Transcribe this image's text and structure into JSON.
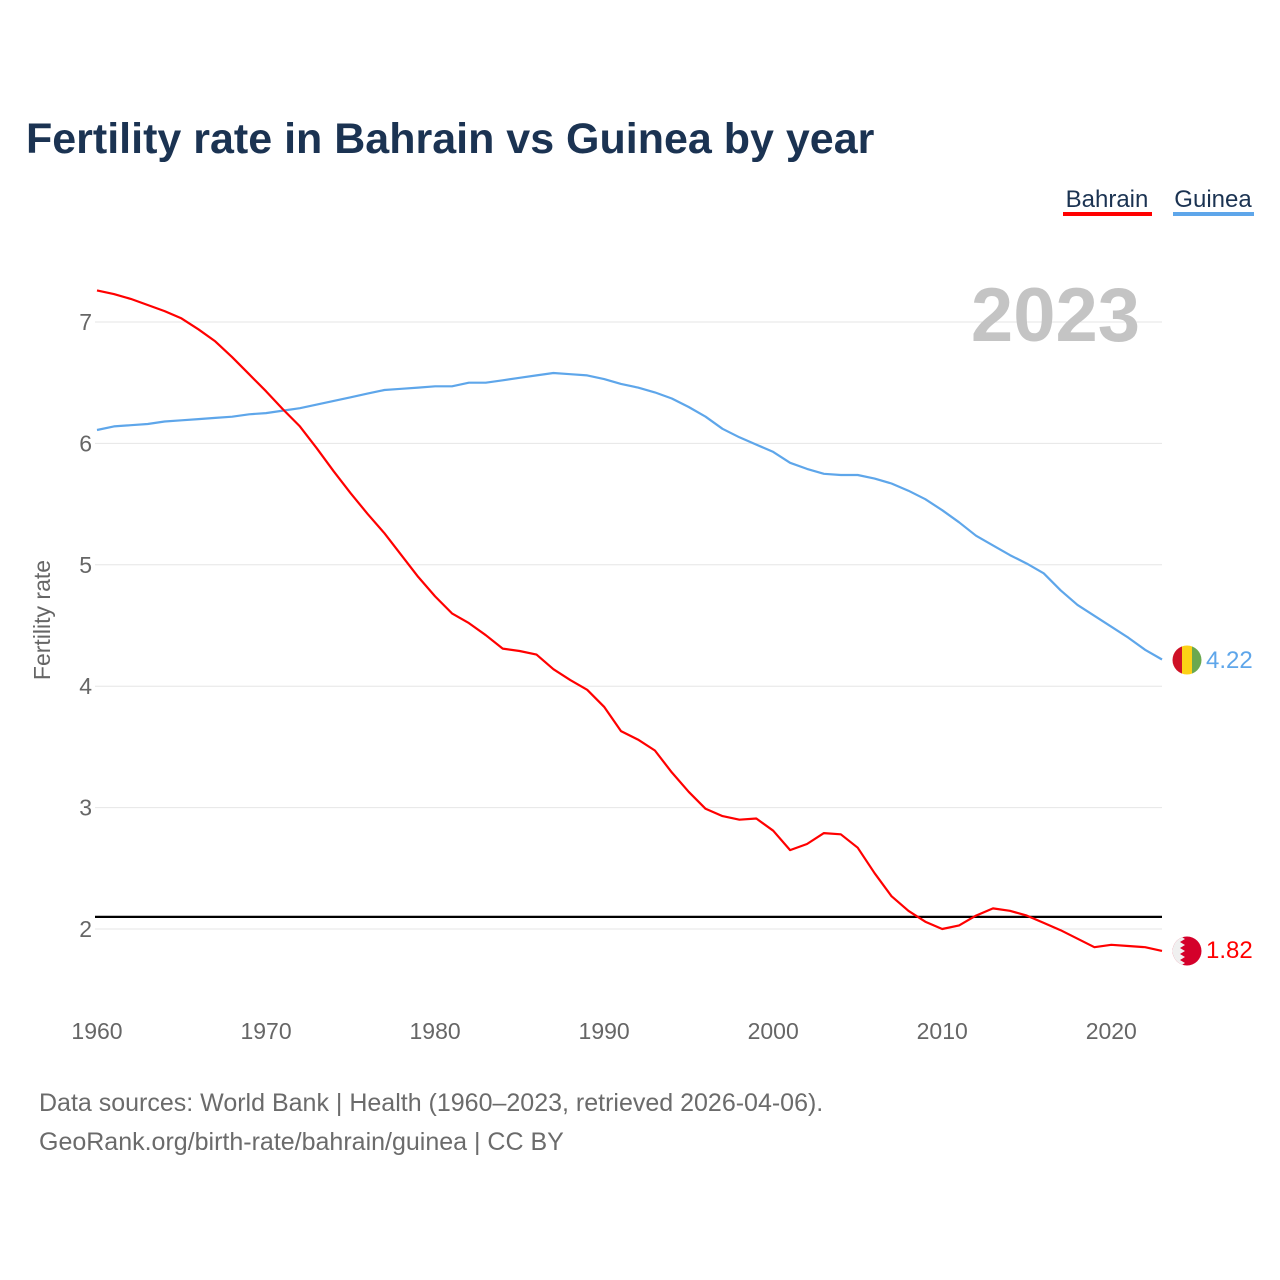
{
  "title": "Fertility rate in Bahrain vs Guinea by year",
  "legend": [
    {
      "label": "Bahrain",
      "color": "#ff0000"
    },
    {
      "label": "Guinea",
      "color": "#5ea6ea"
    }
  ],
  "year_label": "2023",
  "footer": {
    "line1": "Data sources: World Bank | Health (1960–2023, retrieved 2026-04-06).",
    "line2": "GeoRank.org/birth-rate/bahrain/guinea | CC BY"
  },
  "chart_data": {
    "type": "line",
    "title": "Fertility rate in Bahrain vs Guinea by year",
    "xlabel": "",
    "ylabel": "Fertility rate",
    "xlim": [
      1960,
      2023
    ],
    "ylim": [
      1.55,
      7.3
    ],
    "x_ticks": [
      "1960",
      "1970",
      "1980",
      "1990",
      "2000",
      "2010",
      "2020"
    ],
    "y_ticks": [
      "2",
      "3",
      "4",
      "5",
      "6",
      "7"
    ],
    "grid": true,
    "legend_position": "top-right",
    "reference_line": {
      "y": 2.1,
      "color": "#000000"
    },
    "x": [
      1960,
      1961,
      1962,
      1963,
      1964,
      1965,
      1966,
      1967,
      1968,
      1969,
      1970,
      1971,
      1972,
      1973,
      1974,
      1975,
      1976,
      1977,
      1978,
      1979,
      1980,
      1981,
      1982,
      1983,
      1984,
      1985,
      1986,
      1987,
      1988,
      1989,
      1990,
      1991,
      1992,
      1993,
      1994,
      1995,
      1996,
      1997,
      1998,
      1999,
      2000,
      2001,
      2002,
      2003,
      2004,
      2005,
      2006,
      2007,
      2008,
      2009,
      2010,
      2011,
      2012,
      2013,
      2014,
      2015,
      2016,
      2017,
      2018,
      2019,
      2020,
      2021,
      2022,
      2023
    ],
    "series": [
      {
        "name": "Bahrain",
        "color": "#ff0000",
        "end_label": "1.82",
        "values": [
          7.26,
          7.23,
          7.19,
          7.14,
          7.09,
          7.03,
          6.94,
          6.84,
          6.71,
          6.57,
          6.43,
          6.28,
          6.14,
          5.96,
          5.77,
          5.59,
          5.42,
          5.26,
          5.08,
          4.9,
          4.74,
          4.6,
          4.52,
          4.42,
          4.31,
          4.29,
          4.26,
          4.14,
          4.05,
          3.97,
          3.83,
          3.63,
          3.56,
          3.47,
          3.29,
          3.13,
          2.99,
          2.93,
          2.9,
          2.91,
          2.81,
          2.65,
          2.7,
          2.79,
          2.78,
          2.67,
          2.46,
          2.27,
          2.15,
          2.06,
          2.0,
          2.03,
          2.11,
          2.17,
          2.15,
          2.11,
          2.05,
          1.99,
          1.92,
          1.85,
          1.87,
          1.86,
          1.85,
          1.82
        ]
      },
      {
        "name": "Guinea",
        "color": "#5ea6ea",
        "end_label": "4.22",
        "values": [
          6.11,
          6.14,
          6.15,
          6.16,
          6.18,
          6.19,
          6.2,
          6.21,
          6.22,
          6.24,
          6.25,
          6.27,
          6.29,
          6.32,
          6.35,
          6.38,
          6.41,
          6.44,
          6.45,
          6.46,
          6.47,
          6.47,
          6.5,
          6.5,
          6.52,
          6.54,
          6.56,
          6.58,
          6.57,
          6.56,
          6.53,
          6.49,
          6.46,
          6.42,
          6.37,
          6.3,
          6.22,
          6.12,
          6.05,
          5.99,
          5.93,
          5.84,
          5.79,
          5.75,
          5.74,
          5.74,
          5.71,
          5.67,
          5.61,
          5.54,
          5.45,
          5.35,
          5.24,
          5.16,
          5.08,
          5.01,
          4.93,
          4.79,
          4.67,
          4.58,
          4.49,
          4.4,
          4.3,
          4.22
        ]
      }
    ]
  }
}
